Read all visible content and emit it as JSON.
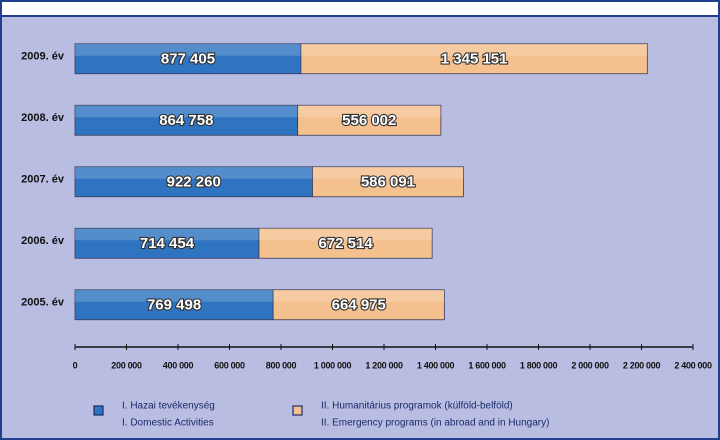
{
  "chart_data": {
    "type": "stacked_barh",
    "categories": [
      "2009. év",
      "2008. év",
      "2007. év",
      "2006. év",
      "2005. év"
    ],
    "series": [
      {
        "name": "I. Hazai tevékenység",
        "subname": "I. Domestic Activities",
        "color": "#2f74c0",
        "values": [
          877405,
          864758,
          922260,
          714454,
          769498
        ],
        "value_labels": [
          "877 405",
          "864 758",
          "922 260",
          "714 454",
          "769 498"
        ]
      },
      {
        "name": "II. Humanitárius programok (külföld-belföld)",
        "subname": "II. Emergency programs (in abroad and in Hungary)",
        "color": "#f4c08e",
        "values": [
          1345151,
          556002,
          586091,
          672514,
          664975
        ],
        "value_labels": [
          "1 345 151",
          "556 002",
          "586 091",
          "672 514",
          "664 975"
        ]
      }
    ],
    "xlim": [
      0,
      2400000
    ],
    "xticks": [
      0,
      {
        "value": 200000,
        "label": "200 000"
      },
      {
        "value": 400000,
        "label": "400 000"
      },
      {
        "value": 600000,
        "label": "600 000"
      },
      {
        "value": 800000,
        "label": "800 000"
      },
      {
        "value": 1000000,
        "label": "1 000 000"
      },
      {
        "value": 1200000,
        "label": "1 200 000"
      },
      {
        "value": 1400000,
        "label": "1 400 000"
      },
      {
        "value": 1600000,
        "label": "1 600 000"
      },
      {
        "value": 1800000,
        "label": "1 800 000"
      },
      {
        "value": 2000000,
        "label": "2 000 000"
      },
      {
        "value": 2200000,
        "label": "2 200 000"
      },
      {
        "value": 2400000,
        "label": "2 400 000"
      }
    ],
    "grid": false
  }
}
